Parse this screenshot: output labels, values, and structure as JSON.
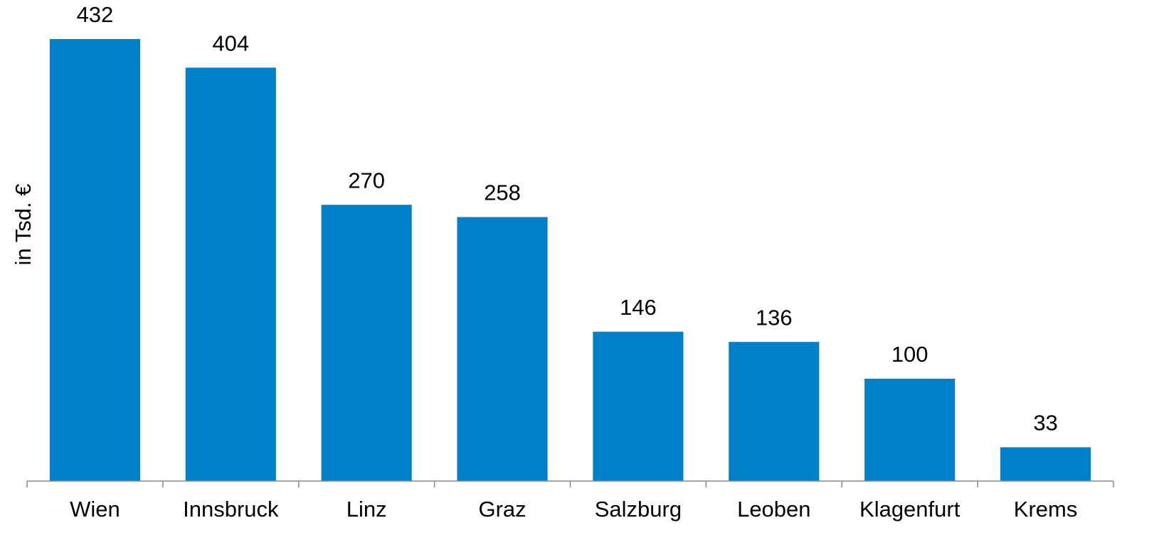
{
  "chart_data": {
    "type": "bar",
    "y_label": "in Tsd. €",
    "categories": [
      "Wien",
      "Innsbruck",
      "Linz",
      "Graz",
      "Salzburg",
      "Leoben",
      "Klagenfurt",
      "Krems"
    ],
    "values": [
      432,
      404,
      270,
      258,
      146,
      136,
      100,
      33
    ],
    "color": "#0080c8",
    "ylim": [
      0,
      450
    ],
    "grid": false
  }
}
